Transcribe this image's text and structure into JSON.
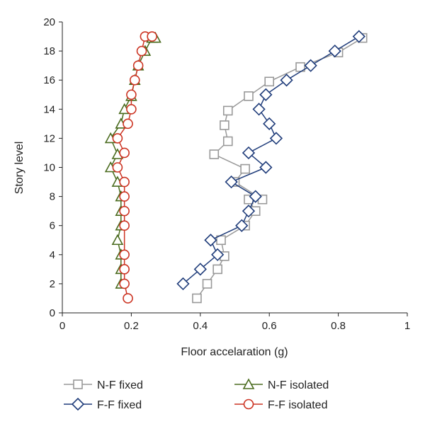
{
  "chart_data": {
    "type": "line",
    "xlabel": "Floor accelaration (g)",
    "ylabel": "Story level",
    "xlim": [
      0,
      1
    ],
    "ylim": [
      0,
      20
    ],
    "x_ticks": [
      "0",
      "0.2",
      "0.4",
      "0.6",
      "0.8",
      "1"
    ],
    "y_ticks": [
      "0",
      "2",
      "4",
      "6",
      "8",
      "10",
      "12",
      "14",
      "16",
      "18",
      "20"
    ],
    "grid": false,
    "legend_position": "bottom",
    "series": [
      {
        "name": "N-F fixed",
        "color": "#999999",
        "marker": "square",
        "x": [
          0.39,
          0.42,
          0.45,
          0.47,
          0.46,
          0.53,
          0.56,
          0.54,
          0.58,
          0.5,
          0.53,
          0.44,
          0.48,
          0.47,
          0.48,
          0.54,
          0.6,
          0.69,
          0.8,
          0.87
        ],
        "y": [
          1,
          2,
          3,
          3.9,
          5,
          6,
          7,
          7.8,
          7.8,
          9,
          9.9,
          10.9,
          11.8,
          12.9,
          13.9,
          14.9,
          15.9,
          16.9,
          17.9,
          18.9
        ]
      },
      {
        "name": "F-F fixed",
        "color": "#1f3c7a",
        "marker": "diamond",
        "x": [
          0.35,
          0.4,
          0.45,
          0.43,
          0.52,
          0.54,
          0.56,
          0.49,
          0.59,
          0.54,
          0.62,
          0.6,
          0.57,
          0.59,
          0.65,
          0.72,
          0.79,
          0.86
        ],
        "y": [
          2,
          3,
          4,
          5,
          6,
          7,
          8,
          9,
          10,
          11,
          12,
          13,
          14,
          15,
          16,
          17,
          18,
          19
        ]
      },
      {
        "name": "N-F isolated",
        "color": "#4a6b1e",
        "marker": "triangle",
        "x": [
          0.17,
          0.17,
          0.17,
          0.16,
          0.17,
          0.17,
          0.17,
          0.16,
          0.14,
          0.16,
          0.14,
          0.17,
          0.18,
          0.2,
          0.21,
          0.22,
          0.24,
          0.26,
          0.27
        ],
        "y": [
          2,
          3,
          4,
          5,
          6,
          7,
          8,
          9,
          10,
          10.9,
          12,
          13,
          14,
          14.9,
          16,
          17,
          18,
          18.9,
          18.9
        ]
      },
      {
        "name": "F-F isolated",
        "color": "#cc3322",
        "marker": "circle",
        "x": [
          0.19,
          0.18,
          0.18,
          0.18,
          0.18,
          0.18,
          0.18,
          0.18,
          0.16,
          0.18,
          0.16,
          0.19,
          0.2,
          0.2,
          0.21,
          0.22,
          0.23,
          0.24,
          0.26
        ],
        "y": [
          1,
          2,
          3,
          4,
          6,
          7,
          8,
          9,
          10,
          11,
          12,
          13,
          14,
          15,
          16,
          17,
          18,
          19,
          19
        ]
      }
    ],
    "legend": [
      {
        "label": "N-F fixed",
        "marker": "square",
        "color": "#999999"
      },
      {
        "label": "N-F isolated",
        "marker": "triangle",
        "color": "#4a6b1e"
      },
      {
        "label": "F-F fixed",
        "marker": "diamond",
        "color": "#1f3c7a"
      },
      {
        "label": "F-F isolated",
        "marker": "circle",
        "color": "#cc3322"
      }
    ]
  }
}
